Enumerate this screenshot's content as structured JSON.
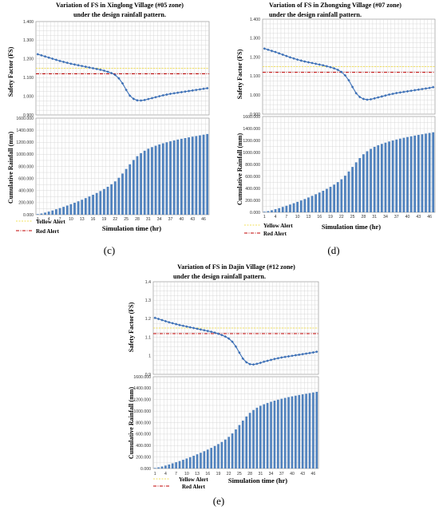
{
  "colors": {
    "fs_line": "#3a6eb5",
    "bars": "#4f81bd",
    "yellow_alert": "#f2e05c",
    "red_alert": "#c00000",
    "grid": "#d0d0d0",
    "border": "#888888"
  },
  "chart_data": [
    {
      "id": "c",
      "caption": "(c)",
      "title": [
        "Variation of FS in Xinglong Village (#05 zone)",
        "under the design rainfall pattern."
      ],
      "type": "line+bar",
      "fs_panel": {
        "type": "line",
        "ylabel": "Safety Factor (FS)",
        "ylim": [
          0.9,
          1.4
        ],
        "ytick_labels": [
          "0.900",
          "1.000",
          "1.100",
          "1.200",
          "1.300",
          "1.400"
        ],
        "yellow_alert": 1.15,
        "red_alert": 1.12,
        "series": [
          {
            "values": [
              1.225,
              1.219,
              1.213,
              1.207,
              1.201,
              1.195,
              1.189,
              1.184,
              1.179,
              1.174,
              1.17,
              1.166,
              1.162,
              1.158,
              1.154,
              1.15,
              1.146,
              1.142,
              1.137,
              1.131,
              1.124,
              1.114,
              1.096,
              1.069,
              1.034,
              1.003,
              0.986,
              0.978,
              0.977,
              0.98,
              0.985,
              0.99,
              0.995,
              1.0,
              1.005,
              1.009,
              1.013,
              1.016,
              1.019,
              1.022,
              1.025,
              1.028,
              1.031,
              1.034,
              1.037,
              1.04,
              1.043
            ]
          }
        ]
      },
      "rain_panel": {
        "type": "bar",
        "ylabel": "Cumulative Rainfall (mm)",
        "ylim": [
          0,
          1600
        ],
        "ytick_labels": [
          "0.000",
          "200.000",
          "400.000",
          "600.000",
          "800.000",
          "1000.000",
          "1200.000",
          "1400.000",
          "1600.000"
        ],
        "values": [
          10,
          20,
          35,
          52,
          70,
          90,
          110,
          130,
          152,
          175,
          198,
          222,
          248,
          275,
          302,
          330,
          360,
          392,
          426,
          463,
          505,
          552,
          612,
          682,
          758,
          835,
          907,
          970,
          1020,
          1060,
          1093,
          1120,
          1143,
          1164,
          1183,
          1200,
          1216,
          1231,
          1245,
          1258,
          1270,
          1282,
          1293,
          1304,
          1315,
          1326,
          1337
        ]
      },
      "x_tick_labels": [
        "1",
        "4",
        "7",
        "10",
        "13",
        "16",
        "19",
        "22",
        "25",
        "28",
        "31",
        "34",
        "37",
        "40",
        "43",
        "46"
      ],
      "xlabel": "Simulation time (hr)",
      "legend": [
        "Yellow Alert",
        "Red Alert"
      ]
    },
    {
      "id": "d",
      "caption": "(d)",
      "title": [
        "Variation of FS in Zhongxing Village (#07 zone)",
        "under the design rainfall pattern."
      ],
      "type": "line+bar",
      "fs_panel": {
        "type": "line",
        "ylabel": "Safety Factor (FS)",
        "ylim": [
          0.9,
          1.4
        ],
        "ytick_labels": [
          "0.900",
          "1.000",
          "1.100",
          "1.200",
          "1.300",
          "1.400"
        ],
        "yellow_alert": 1.15,
        "red_alert": 1.12,
        "series": [
          {
            "values": [
              1.245,
              1.239,
              1.233,
              1.227,
              1.22,
              1.213,
              1.206,
              1.199,
              1.193,
              1.187,
              1.182,
              1.177,
              1.173,
              1.169,
              1.165,
              1.161,
              1.157,
              1.152,
              1.147,
              1.141,
              1.133,
              1.122,
              1.104,
              1.078,
              1.043,
              1.01,
              0.99,
              0.98,
              0.976,
              0.978,
              0.983,
              0.988,
              0.993,
              0.998,
              1.003,
              1.007,
              1.011,
              1.014,
              1.017,
              1.02,
              1.023,
              1.026,
              1.029,
              1.032,
              1.035,
              1.038,
              1.042
            ]
          }
        ]
      },
      "rain_panel": {
        "type": "bar",
        "ylabel": "Cumulative Rainfall (mm)",
        "ylim": [
          0,
          1600
        ],
        "ytick_labels": [
          "0.000",
          "200.000",
          "400.000",
          "600.000",
          "800.000",
          "1000.000",
          "1200.000",
          "1400.000",
          "1600.000"
        ],
        "values": [
          10,
          20,
          35,
          52,
          70,
          90,
          110,
          130,
          152,
          175,
          198,
          222,
          248,
          275,
          302,
          330,
          360,
          392,
          426,
          463,
          505,
          552,
          612,
          682,
          758,
          835,
          907,
          970,
          1020,
          1060,
          1093,
          1120,
          1143,
          1164,
          1183,
          1200,
          1216,
          1231,
          1245,
          1258,
          1270,
          1282,
          1293,
          1304,
          1315,
          1326,
          1337
        ]
      },
      "x_tick_labels": [
        "1",
        "4",
        "7",
        "10",
        "13",
        "16",
        "19",
        "22",
        "25",
        "28",
        "31",
        "34",
        "37",
        "40",
        "43",
        "46"
      ],
      "xlabel": "Simulation time (hr)",
      "legend": [
        "Yellow Alert",
        "Red Alert"
      ]
    },
    {
      "id": "e",
      "caption": "(e)",
      "title": [
        "Variation of FS in Dajin Village (#12 zone)",
        "under the design rainfall pattern."
      ],
      "type": "line+bar",
      "fs_panel": {
        "type": "line",
        "ylabel": "Safety Factor (FS)",
        "ylim": [
          0.9,
          1.4
        ],
        "ytick_labels": [
          "0.9",
          "1",
          "1.1",
          "1.2",
          "1.3",
          "1.4"
        ],
        "yellow_alert": 1.15,
        "red_alert": 1.12,
        "series": [
          {
            "values": [
              1.205,
              1.199,
              1.193,
              1.187,
              1.181,
              1.176,
              1.171,
              1.166,
              1.162,
              1.158,
              1.154,
              1.15,
              1.146,
              1.142,
              1.138,
              1.134,
              1.13,
              1.125,
              1.119,
              1.112,
              1.104,
              1.093,
              1.076,
              1.05,
              1.017,
              0.985,
              0.965,
              0.955,
              0.953,
              0.957,
              0.962,
              0.968,
              0.973,
              0.978,
              0.983,
              0.987,
              0.991,
              0.994,
              0.997,
              1.0,
              1.003,
              1.006,
              1.009,
              1.012,
              1.015,
              1.018,
              1.022
            ]
          }
        ]
      },
      "rain_panel": {
        "type": "bar",
        "ylabel": "Cumulative Rainfall (mm)",
        "ylim": [
          0,
          1600
        ],
        "ytick_labels": [
          "0.000",
          "200.000",
          "400.000",
          "600.000",
          "800.000",
          "1000.000",
          "1200.000",
          "1400.000",
          "1600.000"
        ],
        "values": [
          10,
          20,
          35,
          52,
          70,
          90,
          110,
          130,
          152,
          175,
          198,
          222,
          248,
          275,
          302,
          330,
          360,
          392,
          426,
          463,
          505,
          552,
          612,
          682,
          758,
          835,
          907,
          970,
          1020,
          1060,
          1093,
          1120,
          1143,
          1164,
          1183,
          1200,
          1216,
          1231,
          1245,
          1258,
          1270,
          1282,
          1293,
          1304,
          1315,
          1326,
          1337
        ]
      },
      "x_tick_labels": [
        "1",
        "4",
        "7",
        "10",
        "13",
        "16",
        "19",
        "22",
        "25",
        "28",
        "31",
        "34",
        "37",
        "40",
        "43",
        "46"
      ],
      "xlabel": "Simulation time (hr)",
      "legend": [
        "Yellow Alert",
        "Red Alert"
      ]
    }
  ]
}
